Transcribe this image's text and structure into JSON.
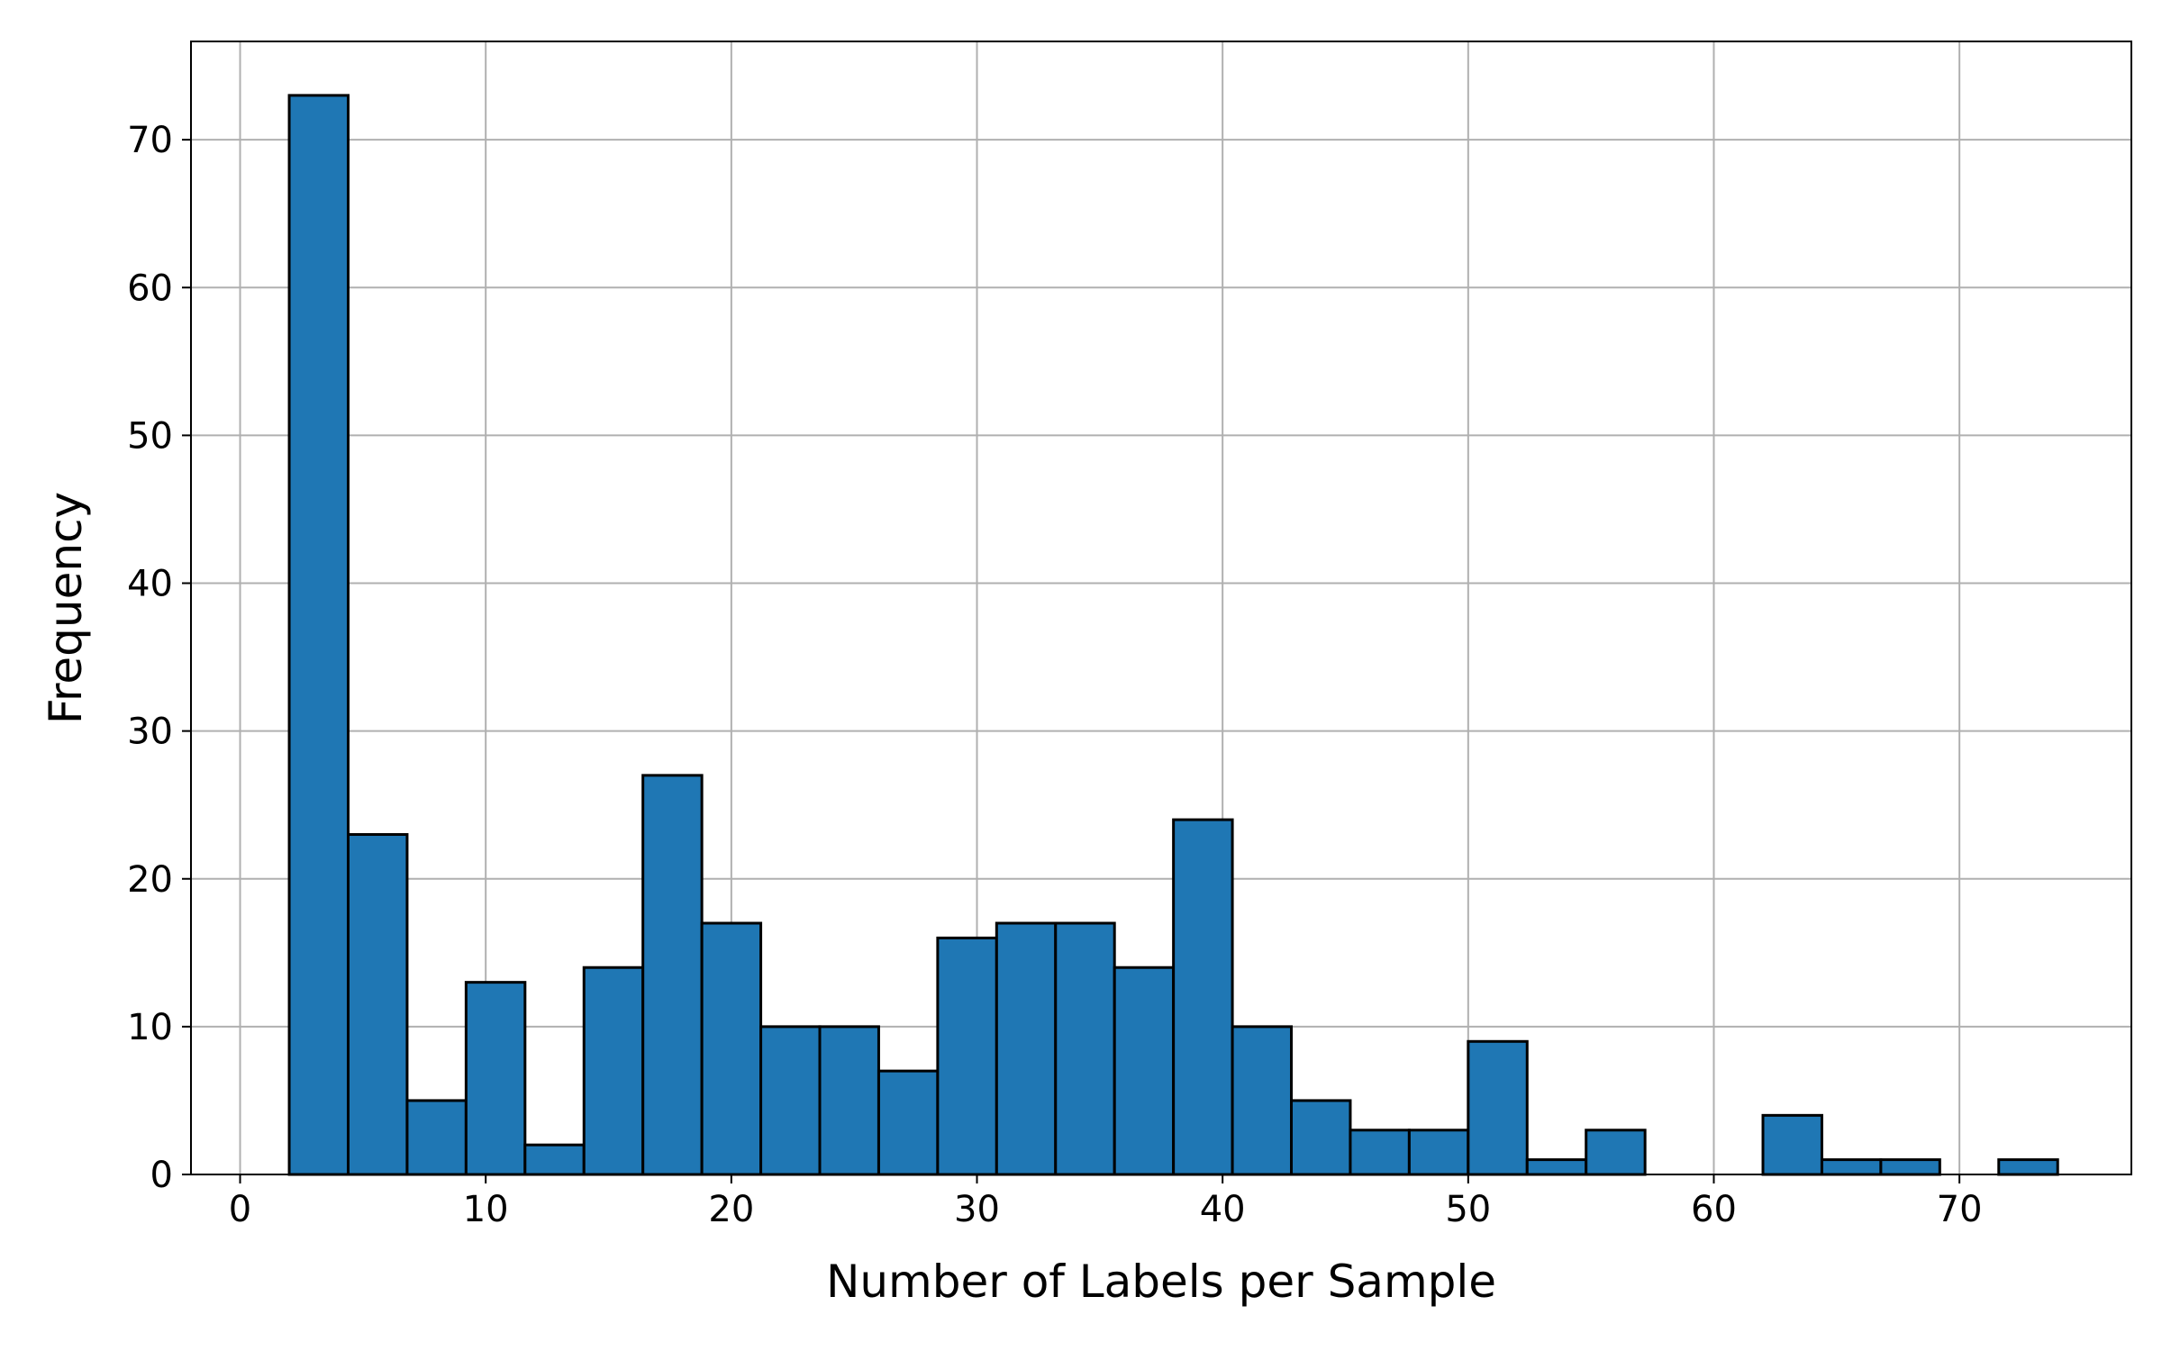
{
  "chart_data": {
    "type": "bar",
    "subtype": "histogram",
    "title": "",
    "xlabel": "Number of Labels per Sample",
    "ylabel": "Frequency",
    "xlim": [
      -2,
      77
    ],
    "ylim": [
      0,
      76.65
    ],
    "xticks": [
      0,
      10,
      20,
      30,
      40,
      50,
      60,
      70
    ],
    "yticks": [
      0,
      10,
      20,
      30,
      40,
      50,
      60,
      70
    ],
    "grid": true,
    "bar_color": "#1f77b4",
    "edge_color": "#000000",
    "bin_start": 2,
    "bin_width": 2.4,
    "values": [
      73,
      23,
      5,
      13,
      2,
      14,
      27,
      17,
      10,
      10,
      7,
      16,
      17,
      17,
      14,
      24,
      10,
      5,
      3,
      3,
      9,
      1,
      3,
      0,
      0,
      4,
      1,
      1,
      0,
      1
    ]
  }
}
